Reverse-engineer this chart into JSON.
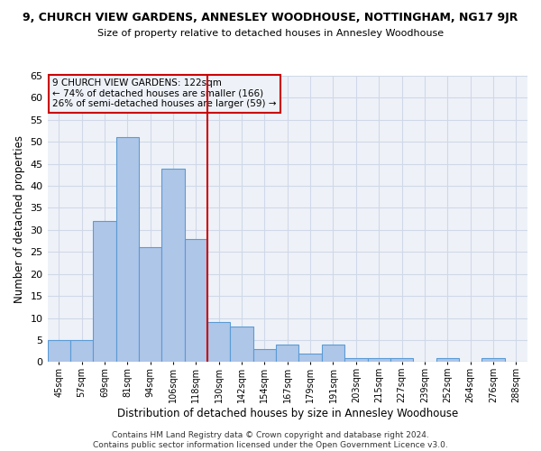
{
  "title": "9, CHURCH VIEW GARDENS, ANNESLEY WOODHOUSE, NOTTINGHAM, NG17 9JR",
  "subtitle": "Size of property relative to detached houses in Annesley Woodhouse",
  "xlabel": "Distribution of detached houses by size in Annesley Woodhouse",
  "ylabel": "Number of detached properties",
  "footer_line1": "Contains HM Land Registry data © Crown copyright and database right 2024.",
  "footer_line2": "Contains public sector information licensed under the Open Government Licence v3.0.",
  "categories": [
    "45sqm",
    "57sqm",
    "69sqm",
    "81sqm",
    "94sqm",
    "106sqm",
    "118sqm",
    "130sqm",
    "142sqm",
    "154sqm",
    "167sqm",
    "179sqm",
    "191sqm",
    "203sqm",
    "215sqm",
    "227sqm",
    "239sqm",
    "252sqm",
    "264sqm",
    "276sqm",
    "288sqm"
  ],
  "values": [
    5,
    5,
    32,
    51,
    26,
    44,
    28,
    9,
    8,
    3,
    4,
    2,
    4,
    1,
    1,
    1,
    0,
    1,
    0,
    1,
    0
  ],
  "bar_color": "#aec6e8",
  "bar_edge_color": "#5b9bd5",
  "grid_color": "#d0d8e8",
  "background_color": "#eef2f8",
  "fig_background": "#ffffff",
  "vline_x": 6.5,
  "vline_color": "#cc0000",
  "annotation_text": "9 CHURCH VIEW GARDENS: 122sqm\n← 74% of detached houses are smaller (166)\n26% of semi-detached houses are larger (59) →",
  "annotation_box_color": "#cc0000",
  "ylim": [
    0,
    65
  ],
  "yticks": [
    0,
    5,
    10,
    15,
    20,
    25,
    30,
    35,
    40,
    45,
    50,
    55,
    60,
    65
  ]
}
